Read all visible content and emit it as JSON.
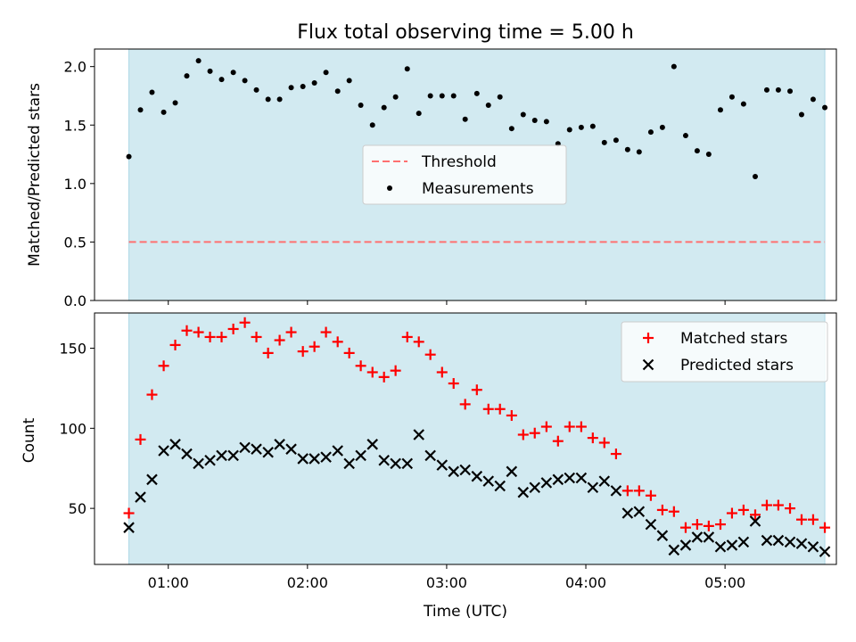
{
  "chart_data": [
    {
      "type": "scatter",
      "title": "Flux total observing time = 5.00 h",
      "ylabel": "Matched/Predicted stars",
      "xlabel": "",
      "xlim": [
        0.47,
        5.8
      ],
      "ylim": [
        0,
        2.15
      ],
      "yticks": [
        0.0,
        0.5,
        1.0,
        1.5,
        2.0
      ],
      "ytick_labels": [
        "0.0",
        "0.5",
        "1.0",
        "1.5",
        "2.0"
      ],
      "observing_window": [
        0.717,
        5.717
      ],
      "background_color": "#add8e6",
      "grid": false,
      "legend_position": "center",
      "series": [
        {
          "name": "Threshold",
          "style": "dashed-line",
          "color": "#ff7070",
          "x": [
            0.717,
            5.717
          ],
          "y": [
            0.5,
            0.5
          ]
        },
        {
          "name": "Measurements",
          "style": "dot",
          "color": "#000000",
          "x": [
            0.717,
            0.8,
            0.883,
            0.967,
            1.05,
            1.133,
            1.217,
            1.3,
            1.383,
            1.467,
            1.55,
            1.633,
            1.717,
            1.8,
            1.883,
            1.967,
            2.05,
            2.133,
            2.217,
            2.3,
            2.383,
            2.467,
            2.55,
            2.633,
            2.717,
            2.8,
            2.883,
            2.967,
            3.05,
            3.133,
            3.217,
            3.3,
            3.383,
            3.467,
            3.55,
            3.633,
            3.717,
            3.8,
            3.883,
            3.967,
            4.05,
            4.133,
            4.217,
            4.3,
            4.383,
            4.467,
            4.55,
            4.633,
            4.717,
            4.8,
            4.883,
            4.967,
            5.05,
            5.133,
            5.217,
            5.3,
            5.383,
            5.467,
            5.55,
            5.633,
            5.717
          ],
          "y": [
            1.23,
            1.63,
            1.78,
            1.61,
            1.69,
            1.92,
            2.05,
            1.96,
            1.89,
            1.95,
            1.88,
            1.8,
            1.72,
            1.72,
            1.82,
            1.83,
            1.86,
            1.95,
            1.79,
            1.88,
            1.67,
            1.5,
            1.65,
            1.74,
            1.98,
            1.6,
            1.75,
            1.75,
            1.75,
            1.55,
            1.77,
            1.67,
            1.74,
            1.47,
            1.59,
            1.54,
            1.53,
            1.34,
            1.46,
            1.48,
            1.49,
            1.35,
            1.37,
            1.29,
            1.27,
            1.44,
            1.48,
            2.0,
            1.41,
            1.28,
            1.25,
            1.63,
            1.74,
            1.68,
            1.06,
            1.8,
            1.8,
            1.79,
            1.59,
            1.72,
            1.65
          ]
        }
      ]
    },
    {
      "type": "scatter",
      "title": "",
      "xlabel": "Time (UTC)",
      "ylabel": "Count",
      "xlim": [
        0.47,
        5.8
      ],
      "ylim": [
        15,
        172
      ],
      "xticks": [
        1,
        2,
        3,
        4,
        5
      ],
      "xtick_labels": [
        "01:00",
        "02:00",
        "03:00",
        "04:00",
        "05:00"
      ],
      "yticks": [
        50,
        100,
        150
      ],
      "ytick_labels": [
        "50",
        "100",
        "150"
      ],
      "observing_window": [
        0.717,
        5.717
      ],
      "background_color": "#add8e6",
      "grid": false,
      "legend_position": "top-right",
      "series": [
        {
          "name": "Matched stars",
          "marker": "plus",
          "color": "#ff0000",
          "x": [
            0.717,
            0.8,
            0.883,
            0.967,
            1.05,
            1.133,
            1.217,
            1.3,
            1.383,
            1.467,
            1.55,
            1.633,
            1.717,
            1.8,
            1.883,
            1.967,
            2.05,
            2.133,
            2.217,
            2.3,
            2.383,
            2.467,
            2.55,
            2.633,
            2.717,
            2.8,
            2.883,
            2.967,
            3.05,
            3.133,
            3.217,
            3.3,
            3.383,
            3.467,
            3.55,
            3.633,
            3.717,
            3.8,
            3.883,
            3.967,
            4.05,
            4.133,
            4.217,
            4.3,
            4.383,
            4.467,
            4.55,
            4.633,
            4.717,
            4.8,
            4.883,
            4.967,
            5.05,
            5.133,
            5.217,
            5.3,
            5.383,
            5.467,
            5.55,
            5.633,
            5.717
          ],
          "y": [
            47,
            93,
            121,
            139,
            152,
            161,
            160,
            157,
            157,
            162,
            166,
            157,
            147,
            155,
            160,
            148,
            151,
            160,
            154,
            147,
            139,
            135,
            132,
            136,
            157,
            154,
            146,
            135,
            128,
            115,
            124,
            112,
            112,
            108,
            96,
            97,
            101,
            92,
            101,
            101,
            94,
            91,
            84,
            61,
            61,
            58,
            49,
            48,
            38,
            40,
            39,
            40,
            47,
            49,
            46,
            52,
            52,
            50,
            43,
            43,
            38
          ]
        },
        {
          "name": "Predicted stars",
          "marker": "x",
          "color": "#000000",
          "x": [
            0.717,
            0.8,
            0.883,
            0.967,
            1.05,
            1.133,
            1.217,
            1.3,
            1.383,
            1.467,
            1.55,
            1.633,
            1.717,
            1.8,
            1.883,
            1.967,
            2.05,
            2.133,
            2.217,
            2.3,
            2.383,
            2.467,
            2.55,
            2.633,
            2.717,
            2.8,
            2.883,
            2.967,
            3.05,
            3.133,
            3.217,
            3.3,
            3.383,
            3.467,
            3.55,
            3.633,
            3.717,
            3.8,
            3.883,
            3.967,
            4.05,
            4.133,
            4.217,
            4.3,
            4.383,
            4.467,
            4.55,
            4.633,
            4.717,
            4.8,
            4.883,
            4.967,
            5.05,
            5.133,
            5.217,
            5.3,
            5.383,
            5.467,
            5.55,
            5.633,
            5.717
          ],
          "y": [
            38,
            57,
            68,
            86,
            90,
            84,
            78,
            80,
            83,
            83,
            88,
            87,
            85,
            90,
            87,
            81,
            81,
            82,
            86,
            78,
            83,
            90,
            80,
            78,
            78,
            96,
            83,
            77,
            73,
            74,
            70,
            67,
            64,
            73,
            60,
            63,
            66,
            68,
            69,
            69,
            63,
            67,
            61,
            47,
            48,
            40,
            33,
            24,
            27,
            32,
            32,
            26,
            27,
            29,
            42,
            30,
            30,
            29,
            28,
            26,
            23
          ]
        }
      ]
    }
  ]
}
